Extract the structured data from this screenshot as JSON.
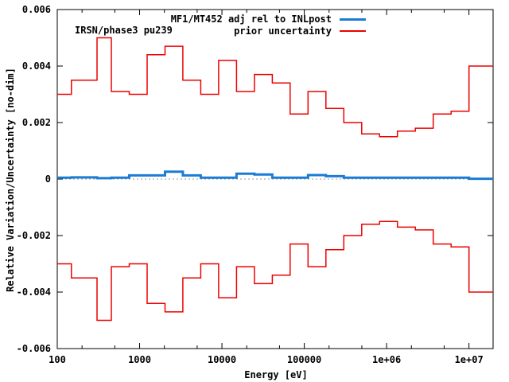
{
  "plot_label": "IRSN/phase3 pu239",
  "legend": {
    "entries": [
      {
        "label": "MF1/MT452 adj rel to INLpost",
        "color": "#1b7cd6"
      },
      {
        "label": "prior uncertainty",
        "color": "#ee0000"
      }
    ]
  },
  "colors": {
    "adjustment_line": "#1b7cd6",
    "prior_uncertainty_line": "#ee0000",
    "axis": "#000000",
    "zero_line": "#999999",
    "background": "#ffffff"
  },
  "chart_data": {
    "type": "line",
    "style": "step-histogram",
    "title": "IRSN/phase3 pu239",
    "xlabel": "Energy [eV]",
    "ylabel": "Relative Variation/Uncertainty [no-dim]",
    "x_scale": "log",
    "xlim": [
      100,
      19640000
    ],
    "ylim": [
      -0.006,
      0.006
    ],
    "x_ticks": [
      100,
      1000,
      10000,
      100000,
      1000000,
      10000000
    ],
    "x_tick_labels": [
      "100",
      "1000",
      "10000",
      "100000",
      "1e+06",
      "1e+07"
    ],
    "x_minor_tick_multipliers": [
      2,
      5
    ],
    "y_ticks": [
      0.006,
      0.004,
      0.002,
      0,
      -0.002,
      -0.004,
      -0.006
    ],
    "y_tick_labels": [
      "0.006",
      "0.004",
      "0.002",
      "0",
      "-0.002",
      "-0.004",
      "-0.006"
    ],
    "grid": false,
    "zero_line_dotted": true,
    "legend_position": "top-right",
    "group_boundaries_eV": [
      100,
      148.63,
      304.33,
      454.0,
      748.52,
      1234.1,
      2034.7,
      3354.6,
      5530.8,
      9118.8,
      15034,
      24788,
      40868,
      67380,
      111090,
      183156,
      301974,
      497871,
      820850,
      1353400,
      2231300,
      3678800,
      6065300,
      10000000,
      19640000
    ],
    "series": [
      {
        "name": "prior uncertainty",
        "color": "#ee0000",
        "line_width": 1.5,
        "mirrored_plus_minus": true,
        "values": [
          0.003,
          0.0035,
          0.005,
          0.0031,
          0.003,
          0.0044,
          0.0047,
          0.0035,
          0.003,
          0.0042,
          0.0031,
          0.0037,
          0.0034,
          0.0023,
          0.0031,
          0.0025,
          0.002,
          0.0016,
          0.0015,
          0.0017,
          0.0018,
          0.0023,
          0.0024,
          0.004
        ]
      },
      {
        "name": "MF1/MT452 adj rel to INLpost",
        "color": "#1b7cd6",
        "line_width": 3,
        "mirrored_plus_minus": false,
        "values": [
          5e-05,
          6e-05,
          3e-05,
          5e-05,
          0.00013,
          0.00013,
          0.00026,
          0.00013,
          5e-05,
          5e-05,
          0.00019,
          0.00016,
          5e-05,
          5e-05,
          0.00014,
          0.0001,
          5e-05,
          5e-05,
          5e-05,
          5e-05,
          5e-05,
          5e-05,
          5e-05,
          1e-05
        ]
      }
    ]
  }
}
